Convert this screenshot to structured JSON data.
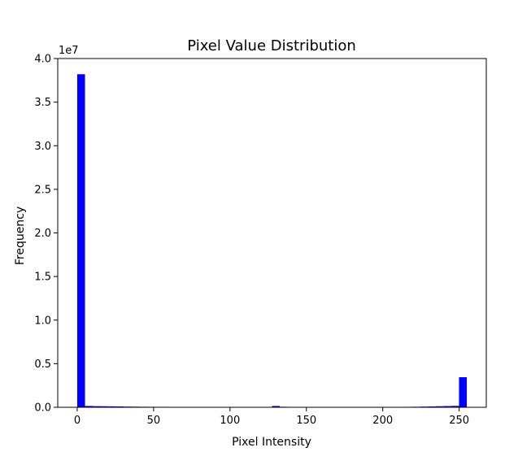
{
  "chart_data": {
    "type": "bar",
    "title": "Pixel Value Distribution",
    "xlabel": "Pixel Intensity",
    "ylabel": "Frequency",
    "y_scale_label": "1e7",
    "xlim": [
      -12.75,
      267.75
    ],
    "ylim": [
      0,
      40000000
    ],
    "x_ticks": [
      0,
      50,
      100,
      150,
      200,
      250
    ],
    "x_tick_labels": [
      "0",
      "50",
      "100",
      "150",
      "200",
      "250"
    ],
    "y_ticks": [
      0,
      5000000,
      10000000,
      15000000,
      20000000,
      25000000,
      30000000,
      35000000,
      40000000
    ],
    "y_tick_labels": [
      "0.0",
      "0.5",
      "1.0",
      "1.5",
      "2.0",
      "2.5",
      "3.0",
      "3.5",
      "4.0"
    ],
    "bin_width": 5.1,
    "bin_starts": [
      0,
      5.1,
      10.2,
      15.3,
      20.4,
      25.5,
      30.6,
      35.7,
      40.8,
      45.9,
      51,
      56.1,
      61.2,
      66.3,
      71.4,
      76.5,
      81.6,
      86.7,
      91.8,
      96.9,
      102,
      107.1,
      112.2,
      117.3,
      122.4,
      127.5,
      132.6,
      137.7,
      142.8,
      147.9,
      153,
      158.1,
      163.2,
      168.3,
      173.4,
      178.5,
      183.6,
      188.7,
      193.8,
      198.9,
      204,
      209.1,
      214.2,
      219.3,
      224.4,
      229.5,
      234.6,
      239.7,
      244.8,
      249.9
    ],
    "values": [
      38200000,
      150000,
      130000,
      120000,
      110000,
      100000,
      80000,
      70000,
      60000,
      55000,
      50000,
      50000,
      45000,
      45000,
      40000,
      40000,
      40000,
      40000,
      40000,
      40000,
      40000,
      40000,
      40000,
      40000,
      45000,
      150000,
      60000,
      40000,
      40000,
      40000,
      40000,
      40000,
      40000,
      40000,
      40000,
      40000,
      40000,
      40000,
      40000,
      40000,
      40000,
      45000,
      50000,
      60000,
      80000,
      100000,
      120000,
      140000,
      160000,
      3450000
    ],
    "bar_color": "#0000ff",
    "grid": false,
    "legend": "none"
  }
}
